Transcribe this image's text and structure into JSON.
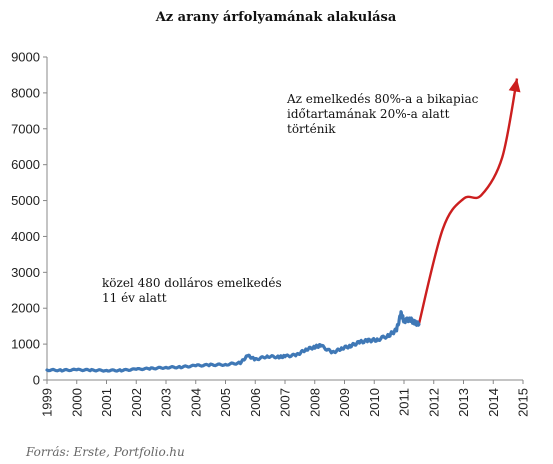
{
  "chart_data": {
    "type": "line",
    "title": "Az arany árfolyamának alakulása",
    "xlabel": "",
    "ylabel": "",
    "xlim": [
      1999,
      2015
    ],
    "ylim": [
      0,
      9000
    ],
    "grid": false,
    "y_ticks": [
      0,
      1000,
      2000,
      3000,
      4000,
      5000,
      6000,
      7000,
      8000,
      9000
    ],
    "x_ticks": [
      1999,
      2000,
      2001,
      2002,
      2003,
      2004,
      2005,
      2006,
      2007,
      2008,
      2009,
      2010,
      2011,
      2012,
      2013,
      2014,
      2015
    ],
    "colors": {
      "historical": "#3f78b6",
      "projection": "#cc1f1f"
    },
    "series": [
      {
        "x": [
          1999.0,
          1999.5,
          2000.0,
          2000.5,
          2001.0,
          2001.5,
          2002.0,
          2002.5,
          2003.0,
          2003.5,
          2004.0,
          2004.5,
          2005.0,
          2005.5,
          2005.75,
          2006.0,
          2006.4,
          2006.8,
          2007.0,
          2007.4,
          2007.7,
          2008.0,
          2008.2,
          2008.6,
          2008.9,
          2009.2,
          2009.5,
          2009.8,
          2010.1,
          2010.5,
          2010.75,
          2010.9,
          2011.0,
          2011.2,
          2011.35,
          2011.5
        ],
        "values": [
          280,
          270,
          285,
          275,
          265,
          270,
          300,
          320,
          350,
          360,
          400,
          420,
          430,
          480,
          680,
          570,
          660,
          640,
          660,
          700,
          850,
          920,
          960,
          760,
          880,
          950,
          1050,
          1100,
          1120,
          1250,
          1400,
          1850,
          1650,
          1700,
          1600,
          1550
        ]
      },
      {
        "x": [
          2011.5,
          2012.3,
          2013.0,
          2013.6,
          2014.3,
          2014.8
        ],
        "values": [
          1550,
          4200,
          5050,
          5150,
          6200,
          8400
        ]
      }
    ],
    "annotations": [
      {
        "lines": [
          "Az emelkedés 80%-a a bikapiac",
          "időtartamának 20%-a alatt",
          "történik"
        ]
      },
      {
        "lines": [
          "közel 480 dolláros emelkedés",
          "11 év alatt"
        ]
      }
    ]
  },
  "source": "Forrás: Erste, Portfolio.hu"
}
